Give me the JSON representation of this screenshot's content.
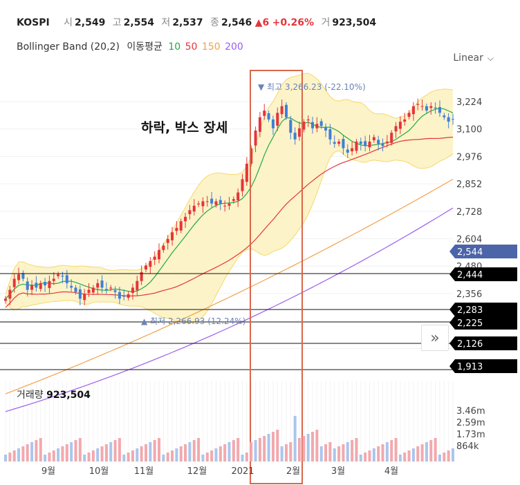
{
  "header": {
    "symbol": "KOSPI",
    "open_label": "시",
    "open": "2,549",
    "high_label": "고",
    "high": "2,554",
    "low_label": "저",
    "low": "2,537",
    "close_label": "종",
    "close": "2,546",
    "change": "▲6",
    "change_pct": "+0.26%",
    "volume_label": "거",
    "volume": "923,504"
  },
  "indicators": {
    "bb": "Bollinger Band (20,2)",
    "ma_label": "이동평균",
    "ma10": "10",
    "ma50": "50",
    "ma150": "150",
    "ma200": "200"
  },
  "scale_mode": "Linear",
  "annotation_text": "하락, 박스 장세",
  "volume_label": "거래량",
  "volume_value": "923,504",
  "colors": {
    "up": "#e5343b",
    "down": "#3f7fd6",
    "ma10": "#22a845",
    "ma50": "#e5343b",
    "ma150": "#f3a04a",
    "ma200": "#9c5cf0",
    "band_fill": "#fcf3c8",
    "band_line": "#f6d86a",
    "highlight_box": "#d9664a",
    "current_price_tag": "#4c64a8"
  },
  "chart_data": {
    "type": "candlestick",
    "symbol": "KOSPI",
    "x_ticks": [
      "9월",
      "10월",
      "11월",
      "12월",
      "2021",
      "2월",
      "3월",
      "4월"
    ],
    "y_ticks": [
      "3,224",
      "3,100",
      "2,976",
      "2,852",
      "2,728",
      "2,604",
      "2,480",
      "2,356"
    ],
    "price_tags": [
      "2,544",
      "2,444",
      "2,283",
      "2,225",
      "2,126",
      "1,913"
    ],
    "current_price": 2544,
    "horizontal_levels": [
      2444,
      2283,
      2225,
      2126,
      1913
    ],
    "highest_marker": "최고 3,266.23 (-22.10%)",
    "lowest_marker": "최저 2,266.93 (12.24%)",
    "volume_ticks": [
      "3.46m",
      "2.59m",
      "1.73m",
      "864k"
    ],
    "close_series": [
      2330,
      2370,
      2420,
      2440,
      2420,
      2370,
      2390,
      2380,
      2400,
      2390,
      2410,
      2420,
      2440,
      2430,
      2400,
      2380,
      2360,
      2330,
      2350,
      2370,
      2380,
      2400,
      2380,
      2370,
      2380,
      2360,
      2330,
      2340,
      2350,
      2380,
      2410,
      2450,
      2480,
      2500,
      2520,
      2550,
      2570,
      2600,
      2630,
      2650,
      2680,
      2700,
      2730,
      2750,
      2760,
      2770,
      2770,
      2760,
      2770,
      2760,
      2750,
      2760,
      2780,
      2810,
      2870,
      2940,
      3010,
      3090,
      3150,
      3180,
      3140,
      3100,
      3170,
      3200,
      3150,
      3080,
      3050,
      3100,
      3130,
      3140,
      3100,
      3120,
      3110,
      3090,
      3050,
      3030,
      3040,
      3010,
      2990,
      3010,
      3040,
      3030,
      3020,
      3040,
      3060,
      3030,
      3020,
      3040,
      3080,
      3110,
      3130,
      3140,
      3170,
      3200,
      3210,
      3200,
      3180,
      3200,
      3190,
      3170,
      3150,
      3130,
      3140
    ],
    "range_high_low": {
      "high": 3266.23,
      "low": 2266.93
    },
    "highlighted_period": "2021-01 to 2021-02"
  }
}
